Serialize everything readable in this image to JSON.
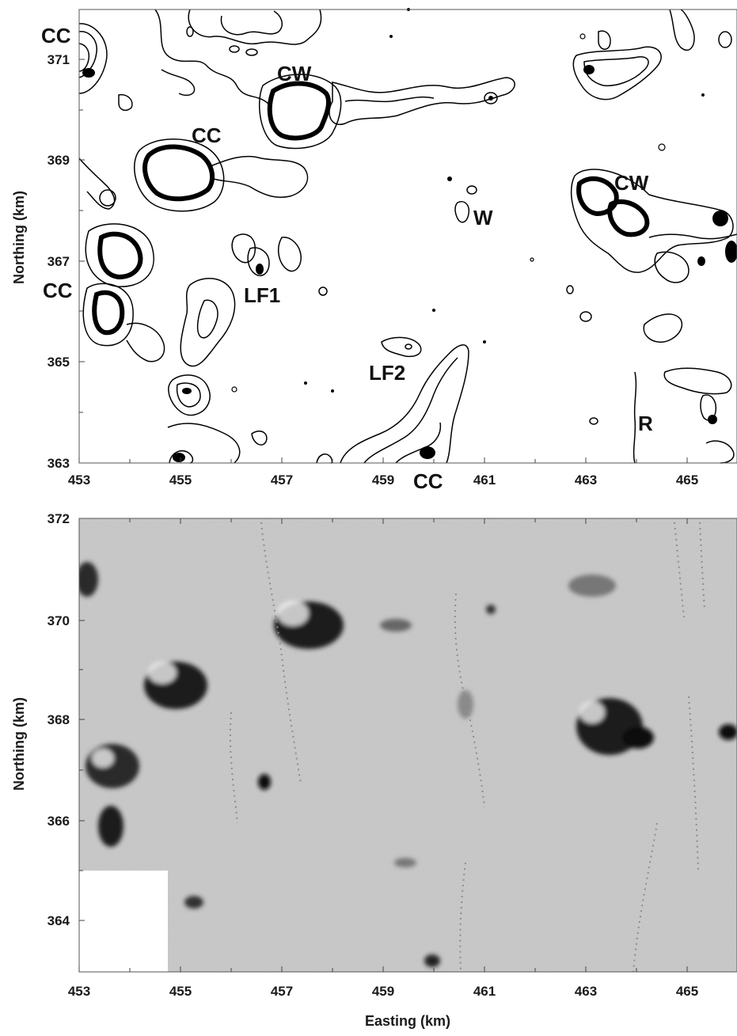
{
  "top_panel": {
    "x_ticks": [
      "453",
      "455",
      "457",
      "459",
      "461",
      "463",
      "465"
    ],
    "y_ticks": [
      "371",
      "369",
      "367",
      "365",
      "363"
    ],
    "ylabel": "Northing (km)",
    "feature_labels": {
      "cc_top_left": "CC",
      "cw_center": "CW",
      "cc_mid": "CC",
      "w": "W",
      "cw_right": "CW",
      "cc_left": "CC",
      "lf1": "LF1",
      "lf2": "LF2",
      "r": "R",
      "cc_bottom": "CC"
    }
  },
  "bottom_panel": {
    "x_ticks": [
      "453",
      "455",
      "457",
      "459",
      "461",
      "463",
      "465"
    ],
    "y_ticks": [
      "372",
      "370",
      "368",
      "366",
      "364"
    ],
    "ylabel": "Northing (km)",
    "xlabel": "Easting (km)"
  },
  "colors": {
    "relief_base": "#c8c8c8",
    "relief_dark": "#1a1a1a",
    "contour": "#000000"
  }
}
